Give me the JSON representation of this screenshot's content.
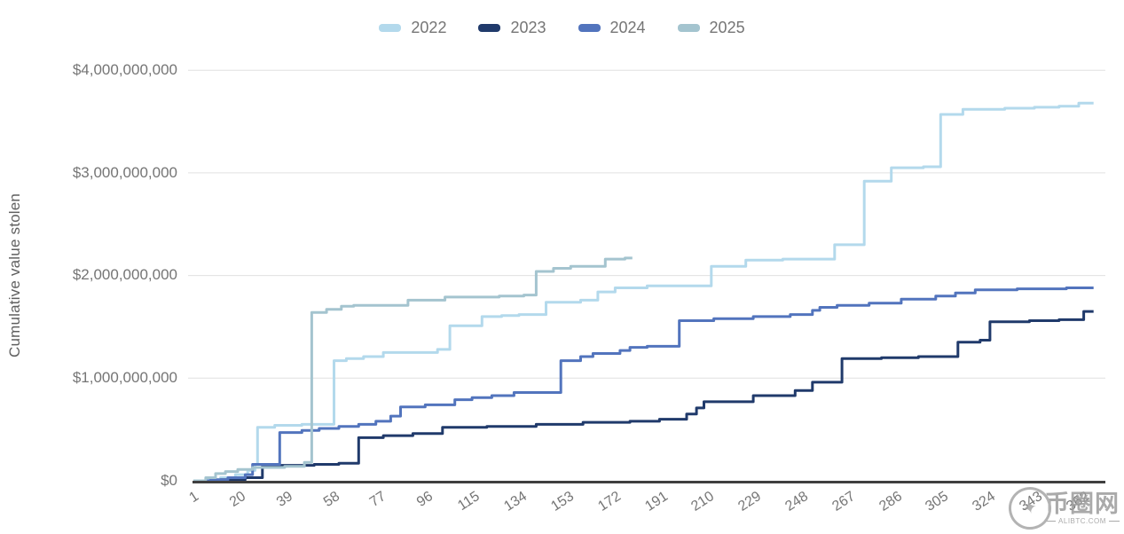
{
  "chart_data": {
    "type": "line",
    "subtype": "step-after-cumulative",
    "title": "",
    "xlabel": "",
    "ylabel": "Cumulative value stolen",
    "x_unit": "day of year",
    "value_unit": "USD billions",
    "xlim": [
      1,
      366
    ],
    "ylim_usd": [
      0,
      4000000000
    ],
    "grid": true,
    "legend_position": "top-center",
    "x_ticks": [
      1,
      20,
      39,
      58,
      77,
      96,
      115,
      134,
      153,
      172,
      191,
      210,
      229,
      248,
      267,
      286,
      305,
      324,
      343,
      362
    ],
    "y_tick_labels": [
      "$0",
      "$1,000,000,000",
      "$2,000,000,000",
      "$3,000,000,000",
      "$4,000,000,000"
    ],
    "y_tick_values_usd": [
      0,
      1000000000,
      2000000000,
      3000000000,
      4000000000
    ],
    "series": [
      {
        "name": "2022",
        "color": "#b3d9ec",
        "end_day": 366,
        "points_day_billions": [
          [
            1,
            0
          ],
          [
            6,
            0.01
          ],
          [
            12,
            0.03
          ],
          [
            18,
            0.06
          ],
          [
            23,
            0.1
          ],
          [
            26,
            0.16
          ],
          [
            27,
            0.52
          ],
          [
            34,
            0.54
          ],
          [
            45,
            0.55
          ],
          [
            58,
            1.17
          ],
          [
            63,
            1.19
          ],
          [
            70,
            1.21
          ],
          [
            78,
            1.25
          ],
          [
            100,
            1.28
          ],
          [
            105,
            1.51
          ],
          [
            118,
            1.6
          ],
          [
            126,
            1.61
          ],
          [
            133,
            1.62
          ],
          [
            144,
            1.74
          ],
          [
            158,
            1.76
          ],
          [
            165,
            1.84
          ],
          [
            172,
            1.88
          ],
          [
            185,
            1.9
          ],
          [
            211,
            2.09
          ],
          [
            225,
            2.15
          ],
          [
            240,
            2.16
          ],
          [
            261,
            2.3
          ],
          [
            273,
            2.92
          ],
          [
            284,
            3.05
          ],
          [
            297,
            3.06
          ],
          [
            304,
            3.57
          ],
          [
            313,
            3.62
          ],
          [
            330,
            3.63
          ],
          [
            342,
            3.64
          ],
          [
            352,
            3.65
          ],
          [
            360,
            3.68
          ]
        ]
      },
      {
        "name": "2023",
        "color": "#203a6b",
        "end_day": 366,
        "points_day_billions": [
          [
            1,
            0
          ],
          [
            12,
            0.01
          ],
          [
            22,
            0.03
          ],
          [
            29,
            0.15
          ],
          [
            50,
            0.16
          ],
          [
            60,
            0.17
          ],
          [
            68,
            0.42
          ],
          [
            78,
            0.44
          ],
          [
            90,
            0.46
          ],
          [
            102,
            0.52
          ],
          [
            120,
            0.53
          ],
          [
            140,
            0.55
          ],
          [
            159,
            0.57
          ],
          [
            178,
            0.58
          ],
          [
            190,
            0.6
          ],
          [
            201,
            0.65
          ],
          [
            205,
            0.71
          ],
          [
            208,
            0.77
          ],
          [
            228,
            0.83
          ],
          [
            245,
            0.88
          ],
          [
            252,
            0.96
          ],
          [
            264,
            1.19
          ],
          [
            280,
            1.2
          ],
          [
            295,
            1.21
          ],
          [
            311,
            1.35
          ],
          [
            320,
            1.37
          ],
          [
            324,
            1.55
          ],
          [
            340,
            1.56
          ],
          [
            352,
            1.57
          ],
          [
            362,
            1.65
          ]
        ]
      },
      {
        "name": "2024",
        "color": "#5274bd",
        "end_day": 366,
        "points_day_billions": [
          [
            1,
            0
          ],
          [
            8,
            0.01
          ],
          [
            15,
            0.03
          ],
          [
            22,
            0.06
          ],
          [
            25,
            0.16
          ],
          [
            36,
            0.47
          ],
          [
            45,
            0.49
          ],
          [
            52,
            0.51
          ],
          [
            60,
            0.53
          ],
          [
            68,
            0.55
          ],
          [
            75,
            0.58
          ],
          [
            81,
            0.63
          ],
          [
            85,
            0.72
          ],
          [
            95,
            0.74
          ],
          [
            107,
            0.79
          ],
          [
            114,
            0.81
          ],
          [
            122,
            0.83
          ],
          [
            131,
            0.86
          ],
          [
            150,
            1.17
          ],
          [
            158,
            1.21
          ],
          [
            163,
            1.24
          ],
          [
            174,
            1.27
          ],
          [
            178,
            1.3
          ],
          [
            185,
            1.31
          ],
          [
            198,
            1.56
          ],
          [
            212,
            1.58
          ],
          [
            228,
            1.6
          ],
          [
            243,
            1.62
          ],
          [
            252,
            1.66
          ],
          [
            255,
            1.69
          ],
          [
            262,
            1.71
          ],
          [
            275,
            1.73
          ],
          [
            288,
            1.77
          ],
          [
            302,
            1.8
          ],
          [
            310,
            1.83
          ],
          [
            318,
            1.86
          ],
          [
            335,
            1.87
          ],
          [
            355,
            1.88
          ]
        ]
      },
      {
        "name": "2025",
        "color": "#a4c4cf",
        "end_day": 179,
        "points_day_billions": [
          [
            1,
            0
          ],
          [
            6,
            0.03
          ],
          [
            10,
            0.07
          ],
          [
            14,
            0.09
          ],
          [
            19,
            0.11
          ],
          [
            25,
            0.13
          ],
          [
            38,
            0.14
          ],
          [
            46,
            0.18
          ],
          [
            49,
            1.64
          ],
          [
            55,
            1.67
          ],
          [
            61,
            1.7
          ],
          [
            66,
            1.71
          ],
          [
            88,
            1.76
          ],
          [
            103,
            1.79
          ],
          [
            125,
            1.8
          ],
          [
            135,
            1.81
          ],
          [
            140,
            2.04
          ],
          [
            147,
            2.07
          ],
          [
            154,
            2.09
          ],
          [
            168,
            2.16
          ],
          [
            176,
            2.17
          ]
        ]
      }
    ],
    "axis_colors": {
      "gridline": "#e0e0e0",
      "baseline": "#3f3f3f",
      "tick_text": "#757575"
    }
  },
  "watermark": {
    "cn": "币圈网",
    "site": "ALIBTC.COM",
    "star": "✦"
  }
}
